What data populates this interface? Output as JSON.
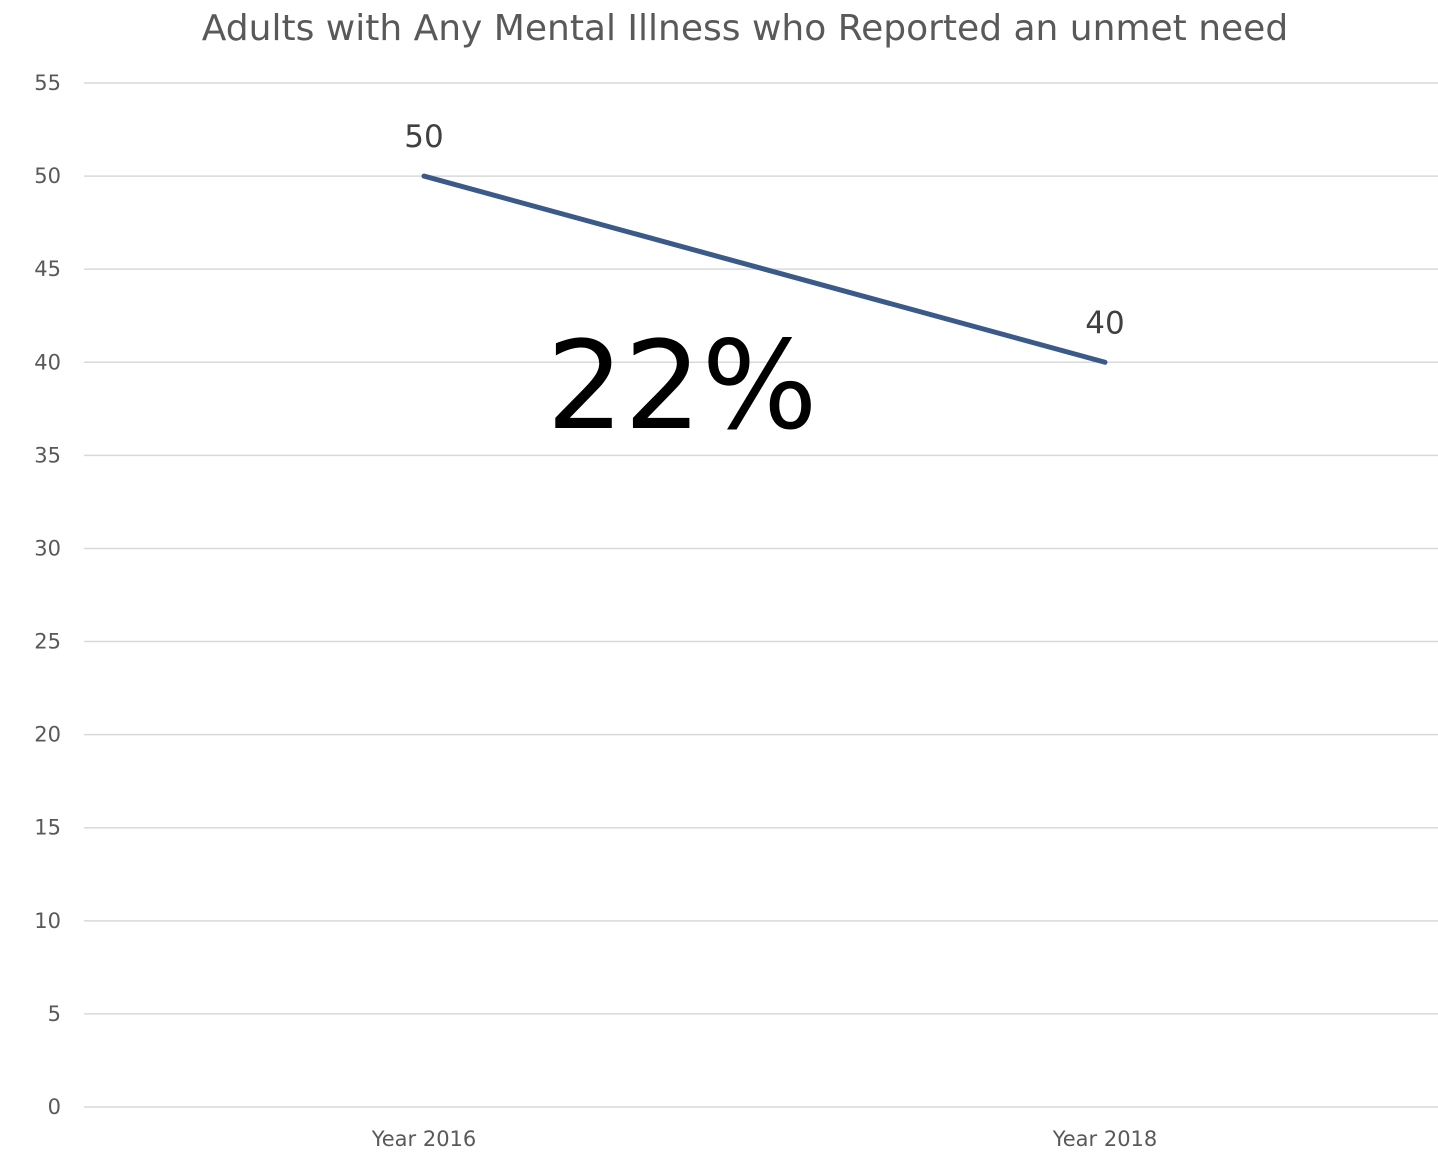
{
  "chart_data": {
    "type": "line",
    "title": "Adults with Any Mental Illness who Reported an unmet need",
    "categories": [
      "Year 2016",
      "Year 2018"
    ],
    "series": [
      {
        "values": [
          50,
          40
        ],
        "color": "#3b5a8a"
      }
    ],
    "data_labels": [
      "50",
      "40"
    ],
    "ylim": [
      0,
      55
    ],
    "y_ticks": [
      0,
      5,
      10,
      15,
      20,
      25,
      30,
      35,
      40,
      45,
      50,
      55
    ],
    "grid": true,
    "legend": "none",
    "annotation": "22%"
  }
}
